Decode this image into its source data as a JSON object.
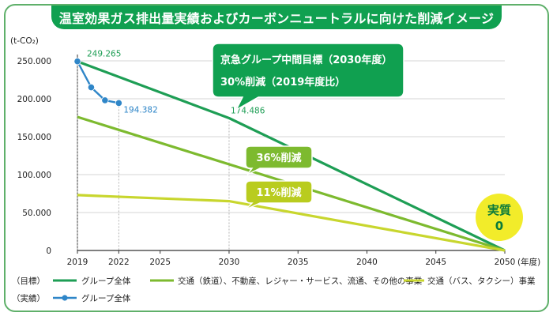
{
  "title": "温室効果ガス排出量実績およびカーボンニュートラルに向けた削減イメージ",
  "callout": {
    "line1": "京急グループ中間目標（2030年度）",
    "line2": "30%削減（2019年度比）"
  },
  "badges": [
    {
      "text": "36%削減"
    },
    {
      "text": "11%削減"
    }
  ],
  "zero_badge": {
    "line1": "実質",
    "line2": "0"
  },
  "legend": {
    "target_label": "（目標）",
    "actual_label": "（実績）",
    "items": [
      {
        "label": "グループ全体"
      },
      {
        "label": "交通（鉄道）、不動産、レジャー・サービス、流通、その他の事業"
      },
      {
        "label": "交通（バス、タクシー）事業"
      },
      {
        "label": "グループ全体"
      }
    ]
  },
  "colors": {
    "frame": "#5fb06a",
    "title_bg": "#10a050",
    "group_total_target": "#1e9e55",
    "rail_etc_target": "#7dba2f",
    "bus_taxi_target": "#c8d62e",
    "group_total_actual": "#2f86c8",
    "zero_badge": "#f2ec2a",
    "badge_36": "#7dba2f",
    "badge_11": "#b9cc1f"
  },
  "chart_data": {
    "type": "line",
    "ylabel": "(t-CO₂)",
    "xlabel": "(年度)",
    "xlim": [
      2019,
      2050
    ],
    "ylim": [
      0,
      250000
    ],
    "x_ticks": [
      "2019",
      "2022",
      "2025",
      "2030",
      "2035",
      "2040",
      "2045",
      "2050"
    ],
    "y_ticks": [
      "250.000",
      "200.000",
      "150.000",
      "100.000",
      "50.000",
      "0"
    ],
    "grid": "horizontal",
    "legend_position": "bottom",
    "series": [
      {
        "name": "グループ全体",
        "role": "target",
        "x": [
          2019,
          2030,
          2050
        ],
        "y": [
          249265,
          174486,
          0
        ]
      },
      {
        "name": "交通（鉄道）、不動産、レジャー・サービス、流通、その他の事業",
        "role": "target",
        "x": [
          2019,
          2050
        ],
        "y": [
          176000,
          0
        ]
      },
      {
        "name": "交通（バス、タクシー）事業",
        "role": "target",
        "x": [
          2019,
          2030,
          2050
        ],
        "y": [
          73000,
          65000,
          0
        ]
      },
      {
        "name": "グループ全体",
        "role": "actual",
        "x": [
          2019,
          2020,
          2021,
          2022
        ],
        "y": [
          249265,
          215000,
          198000,
          194382
        ]
      }
    ],
    "annotations": [
      {
        "text": "249.265",
        "x": 2019,
        "y": 249265
      },
      {
        "text": "194.382",
        "x": 2022,
        "y": 194382
      },
      {
        "text": "174.486",
        "x": 2030,
        "y": 174486
      }
    ]
  }
}
